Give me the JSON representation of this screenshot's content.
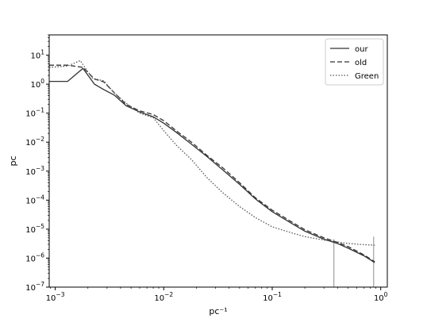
{
  "chart_data": {
    "type": "line",
    "title": "",
    "xlabel": "pc⁻¹",
    "ylabel": "pc",
    "xscale": "log",
    "yscale": "log",
    "xlim": [
      0.00088,
      1.15
    ],
    "ylim": [
      1e-07,
      50
    ],
    "grid": false,
    "legend_position": "top-right",
    "x_ticks": [
      {
        "value": 0.001,
        "base": "10",
        "exp": "−3"
      },
      {
        "value": 0.01,
        "base": "10",
        "exp": "−2"
      },
      {
        "value": 0.1,
        "base": "10",
        "exp": "−1"
      },
      {
        "value": 1,
        "base": "10",
        "exp": "0"
      }
    ],
    "y_ticks": [
      {
        "value": 1e-07,
        "base": "10",
        "exp": "−7"
      },
      {
        "value": 1e-06,
        "base": "10",
        "exp": "−6"
      },
      {
        "value": 1e-05,
        "base": "10",
        "exp": "−5"
      },
      {
        "value": 0.0001,
        "base": "10",
        "exp": "−4"
      },
      {
        "value": 0.001,
        "base": "10",
        "exp": "−3"
      },
      {
        "value": 0.01,
        "base": "10",
        "exp": "−2"
      },
      {
        "value": 0.1,
        "base": "10",
        "exp": "−1"
      },
      {
        "value": 1,
        "base": "10",
        "exp": "0"
      },
      {
        "value": 10,
        "base": "10",
        "exp": "1"
      }
    ],
    "series": [
      {
        "name": "our",
        "style": "solid",
        "color": "#333333",
        "x": [
          0.00088,
          0.0013,
          0.0018,
          0.0023,
          0.0028,
          0.0035,
          0.0045,
          0.006,
          0.008,
          0.01,
          0.013,
          0.018,
          0.025,
          0.035,
          0.05,
          0.07,
          0.1,
          0.15,
          0.2,
          0.3,
          0.4,
          0.5,
          0.7,
          0.88
        ],
        "y": [
          1.25,
          1.25,
          3.5,
          1.0,
          0.65,
          0.42,
          0.18,
          0.11,
          0.075,
          0.045,
          0.022,
          0.0085,
          0.0032,
          0.0011,
          0.00035,
          0.00011,
          4e-05,
          1.6e-05,
          8.5e-06,
          4.5e-06,
          3.2e-06,
          2.2e-06,
          1.2e-06,
          7e-07
        ]
      },
      {
        "name": "old",
        "style": "dashed",
        "color": "#333333",
        "x": [
          0.00088,
          0.0013,
          0.0018,
          0.0023,
          0.0028,
          0.0035,
          0.0045,
          0.006,
          0.008,
          0.01,
          0.013,
          0.018,
          0.025,
          0.035,
          0.05,
          0.07,
          0.1,
          0.15,
          0.2,
          0.3,
          0.4,
          0.5,
          0.7,
          0.88
        ],
        "y": [
          4.5,
          4.5,
          3.8,
          1.5,
          1.2,
          0.5,
          0.2,
          0.12,
          0.09,
          0.055,
          0.025,
          0.01,
          0.0035,
          0.0013,
          0.0004,
          0.00012,
          4.5e-05,
          1.8e-05,
          9.5e-06,
          5e-06,
          3.5e-06,
          2.5e-06,
          1.3e-06,
          7.5e-07
        ]
      },
      {
        "name": "Green",
        "style": "dotted",
        "color": "#555555",
        "x": [
          0.00088,
          0.0013,
          0.0017,
          0.0022,
          0.0028,
          0.0035,
          0.0045,
          0.006,
          0.008,
          0.01,
          0.013,
          0.018,
          0.025,
          0.035,
          0.05,
          0.07,
          0.1,
          0.15,
          0.2,
          0.3,
          0.4,
          0.5,
          0.7,
          0.88
        ],
        "y": [
          3.8,
          4.2,
          6.5,
          1.6,
          1.3,
          0.5,
          0.22,
          0.1,
          0.07,
          0.025,
          0.008,
          0.0025,
          0.0006,
          0.00018,
          6e-05,
          2.5e-05,
          1.2e-05,
          7.5e-06,
          5.5e-06,
          4.2e-06,
          3.6e-06,
          3.2e-06,
          2.9e-06,
          2.8e-06
        ]
      }
    ],
    "spikes": [
      {
        "x": 0.37,
        "y_low": 1e-07,
        "y_high": 4.5e-06
      },
      {
        "x": 0.86,
        "y_low": 1e-07,
        "y_high": 5.5e-06
      }
    ]
  }
}
